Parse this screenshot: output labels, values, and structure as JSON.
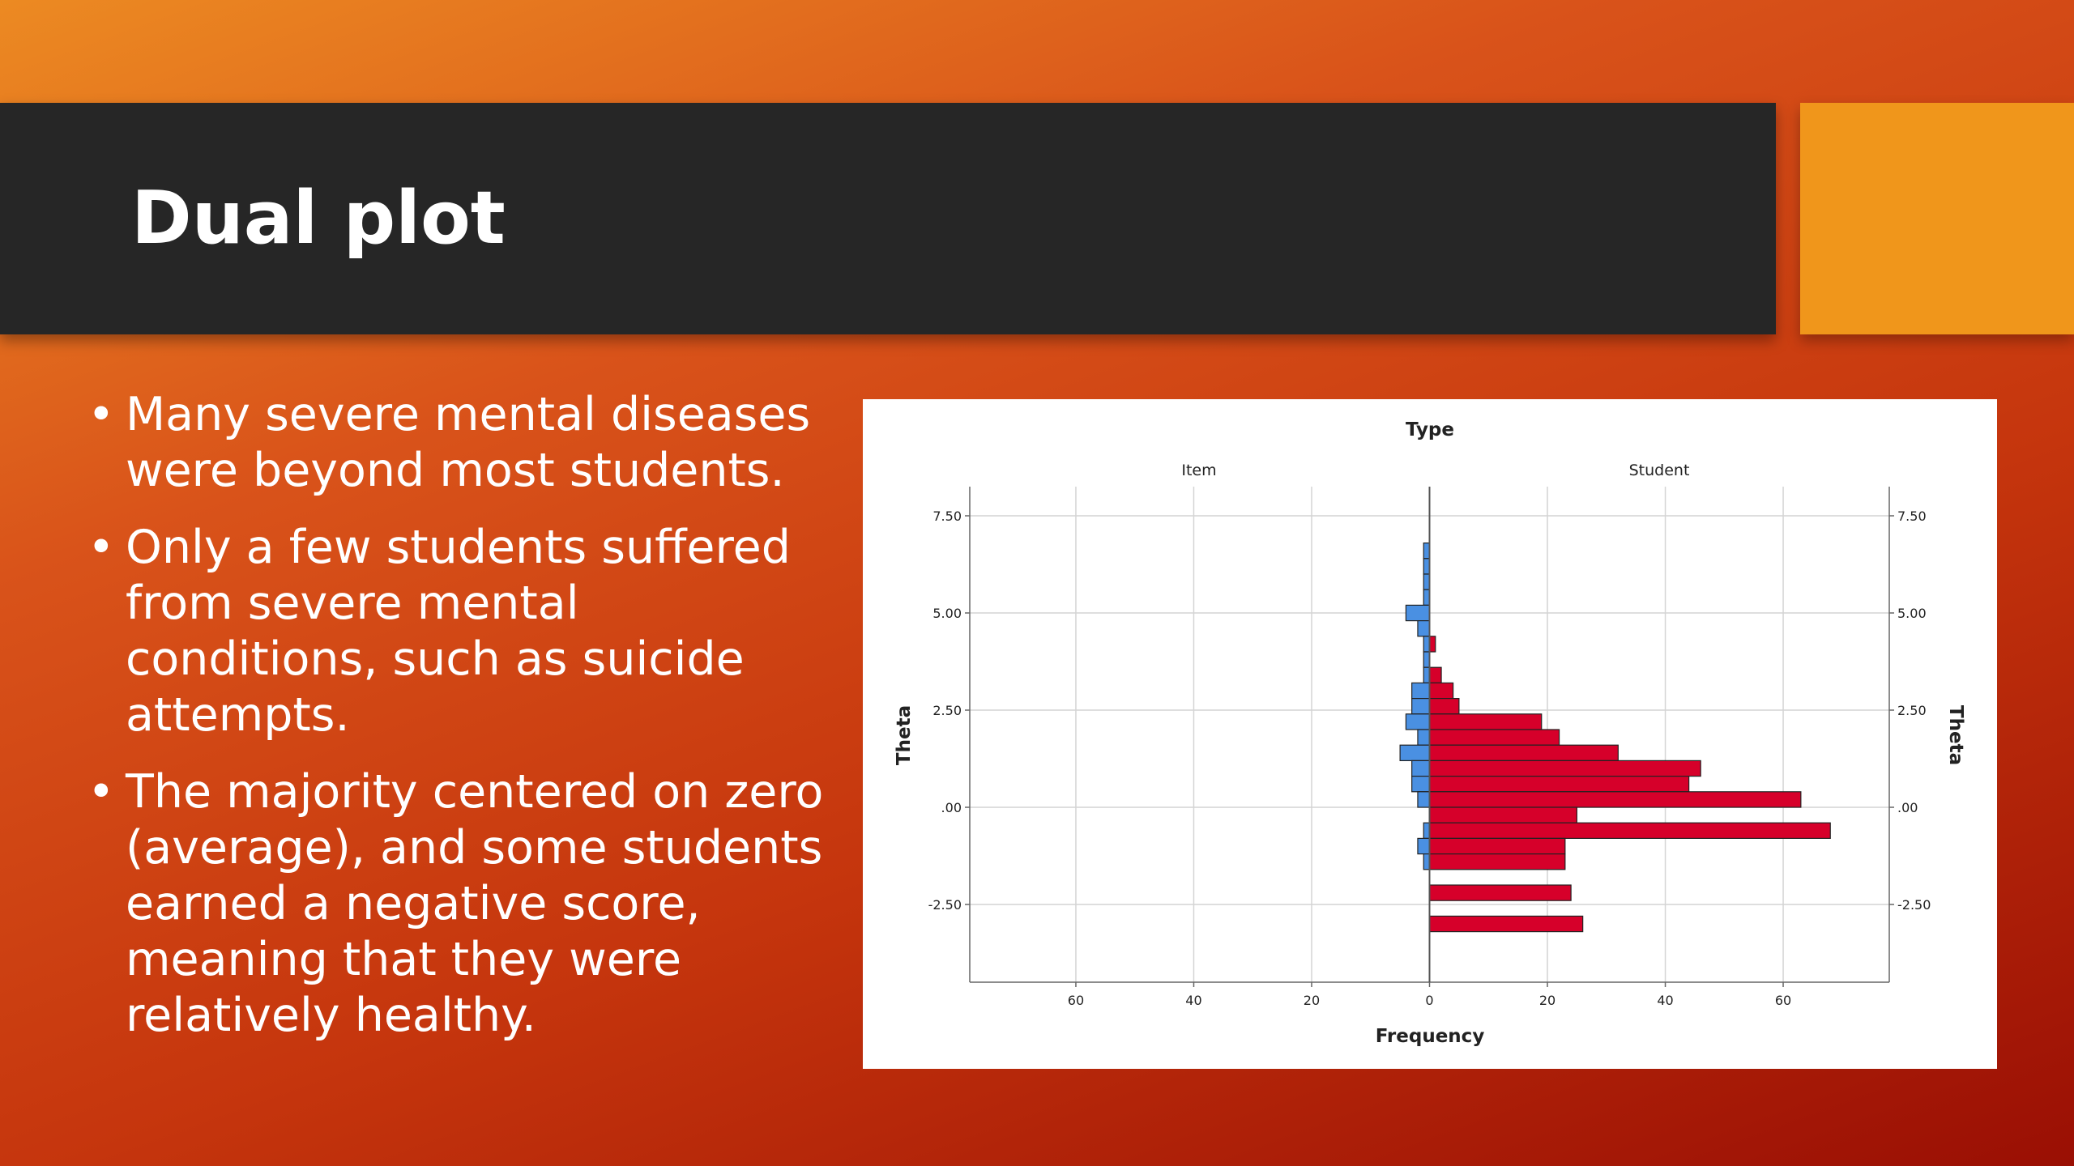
{
  "slide": {
    "title": "Dual plot",
    "bullets": [
      "Many severe mental diseases were beyond most students.",
      "Only a few students suffered from severe mental conditions, such as suicide attempts.",
      "The majority centered on zero (average), and some students earned a negative score, meaning that they were relatively healthy."
    ]
  },
  "colors": {
    "accent": "#f0961b",
    "title_bar": "#262626",
    "item_bar": "#4a90e2",
    "student_bar": "#d6002a"
  },
  "chart_data": {
    "type": "bar",
    "orientation": "horizontal-back-to-back",
    "title": "Type",
    "xlabel": "Frequency",
    "ylabel": "Theta",
    "ylabel_right": "Theta",
    "xlim": [
      -78,
      78
    ],
    "ylim": [
      -4.5,
      8.25
    ],
    "x_ticks": [
      {
        "value": -60,
        "label": "60"
      },
      {
        "value": -40,
        "label": "40"
      },
      {
        "value": -20,
        "label": "20"
      },
      {
        "value": 0,
        "label": "0"
      },
      {
        "value": 20,
        "label": "20"
      },
      {
        "value": 40,
        "label": "40"
      },
      {
        "value": 60,
        "label": "60"
      }
    ],
    "y_ticks": [
      {
        "value": 7.5,
        "label": "7.50"
      },
      {
        "value": 5.0,
        "label": "5.00"
      },
      {
        "value": 2.5,
        "label": "2.50"
      },
      {
        "value": 0.0,
        "label": ".00"
      },
      {
        "value": -2.5,
        "label": "-2.50"
      }
    ],
    "grid": true,
    "bin_width": 0.4,
    "series": [
      {
        "name": "Item",
        "side": "left",
        "bins": [
          {
            "y": 6.6,
            "count": 1
          },
          {
            "y": 6.2,
            "count": 1
          },
          {
            "y": 5.8,
            "count": 1
          },
          {
            "y": 5.4,
            "count": 1
          },
          {
            "y": 5.0,
            "count": 4
          },
          {
            "y": 4.6,
            "count": 2
          },
          {
            "y": 4.2,
            "count": 1
          },
          {
            "y": 3.8,
            "count": 1
          },
          {
            "y": 3.4,
            "count": 1
          },
          {
            "y": 3.0,
            "count": 3
          },
          {
            "y": 2.6,
            "count": 3
          },
          {
            "y": 2.2,
            "count": 4
          },
          {
            "y": 1.8,
            "count": 2
          },
          {
            "y": 1.4,
            "count": 5
          },
          {
            "y": 1.0,
            "count": 3
          },
          {
            "y": 0.6,
            "count": 3
          },
          {
            "y": 0.2,
            "count": 2
          },
          {
            "y": -0.6,
            "count": 1
          },
          {
            "y": -1.0,
            "count": 2
          },
          {
            "y": -1.4,
            "count": 1
          }
        ]
      },
      {
        "name": "Student",
        "side": "right",
        "bins": [
          {
            "y": 4.2,
            "count": 1
          },
          {
            "y": 3.4,
            "count": 2
          },
          {
            "y": 3.0,
            "count": 4
          },
          {
            "y": 2.6,
            "count": 5
          },
          {
            "y": 2.2,
            "count": 19
          },
          {
            "y": 1.8,
            "count": 22
          },
          {
            "y": 1.4,
            "count": 32
          },
          {
            "y": 1.0,
            "count": 46
          },
          {
            "y": 0.6,
            "count": 44
          },
          {
            "y": 0.2,
            "count": 63
          },
          {
            "y": -0.2,
            "count": 25
          },
          {
            "y": -0.6,
            "count": 68
          },
          {
            "y": -1.0,
            "count": 23
          },
          {
            "y": -1.4,
            "count": 23
          },
          {
            "y": -2.2,
            "count": 24
          },
          {
            "y": -3.0,
            "count": 26
          }
        ]
      }
    ]
  }
}
